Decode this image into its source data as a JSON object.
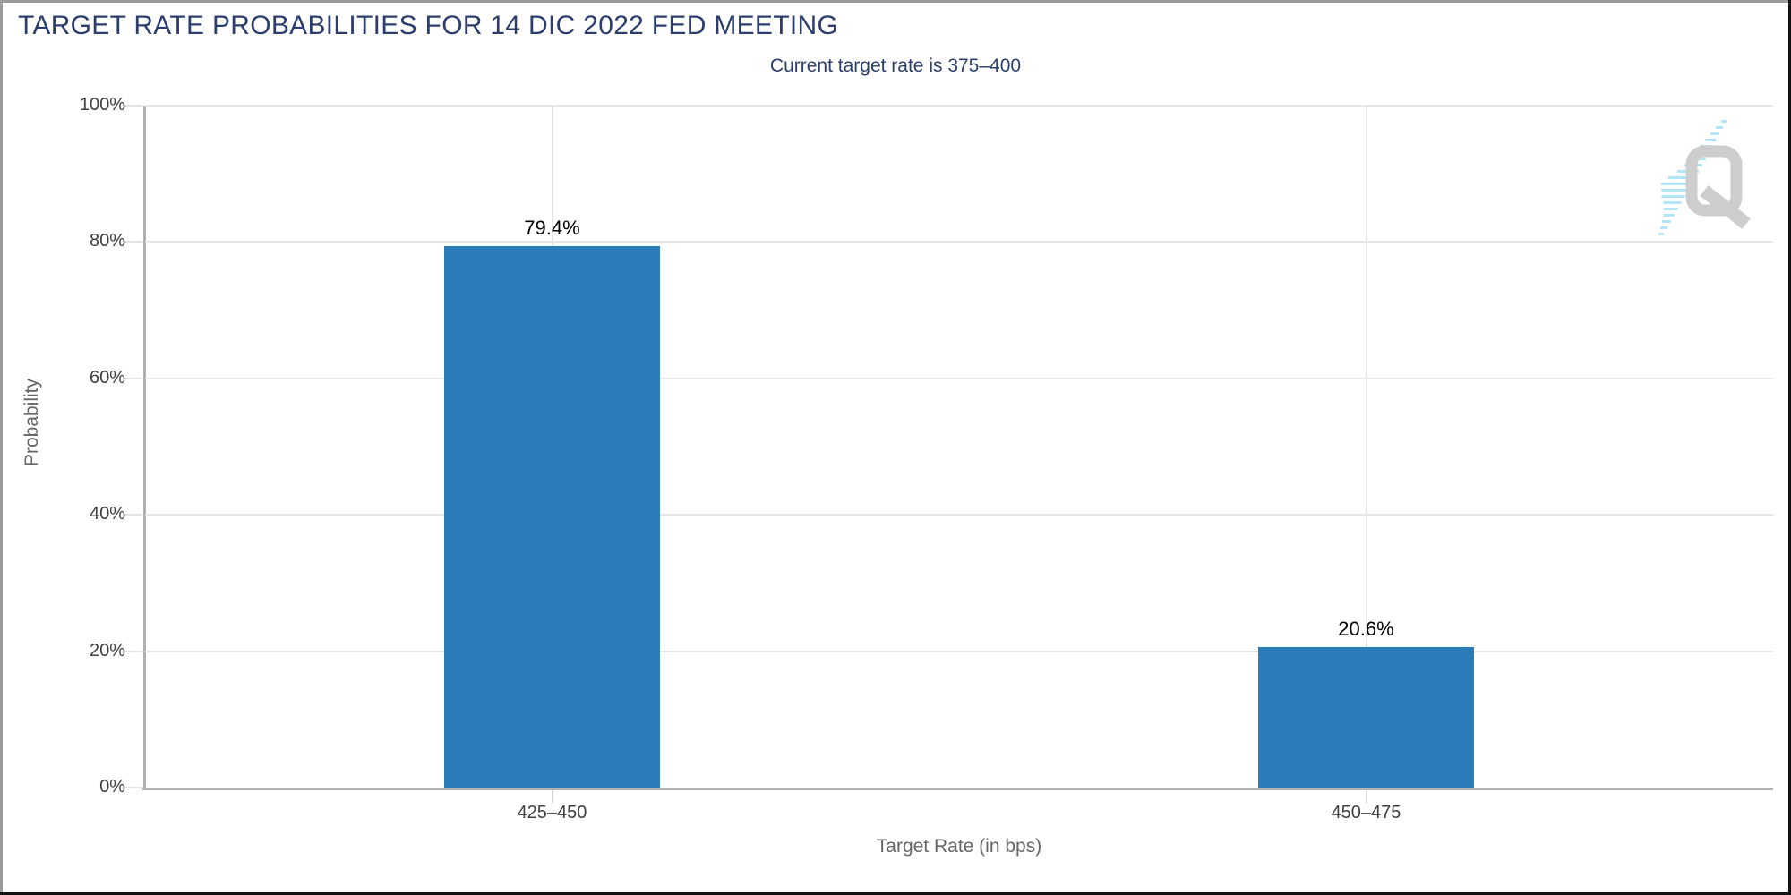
{
  "header": {
    "title": "TARGET RATE PROBABILITIES FOR 14 DIC 2022 FED MEETING",
    "subtitle": "Current target rate is 375–400"
  },
  "watermark": {
    "letter": "Q"
  },
  "colors": {
    "title": "#2c3e6b",
    "subtitle": "#2c3e6b",
    "bar": "#2b7cb8",
    "gridline": "#e6e6e6",
    "axis_line": "#b0b0b0",
    "tick_label": "#404040",
    "axis_title": "#666666",
    "value_label": "#000000",
    "watermark_gray": "#cdcdcd",
    "watermark_blue": "#b3e5f8",
    "frame_gray": "#9b9b9b",
    "frame_black": "#111111"
  },
  "chart_data": {
    "type": "bar",
    "title": "TARGET RATE PROBABILITIES FOR 14 DIC 2022 FED MEETING",
    "subtitle": "Current target rate is 375–400",
    "categories": [
      "425–450",
      "450–475"
    ],
    "values": [
      79.4,
      20.6
    ],
    "value_labels": [
      "79.4%",
      "20.6%"
    ],
    "xlabel": "Target Rate (in bps)",
    "ylabel": "Probability",
    "ylim": [
      0,
      100
    ],
    "yticks": [
      0,
      20,
      40,
      60,
      80,
      100
    ],
    "ytick_labels": [
      "0%",
      "20%",
      "40%",
      "60%",
      "80%",
      "100%"
    ],
    "grid": true,
    "legend": false
  }
}
